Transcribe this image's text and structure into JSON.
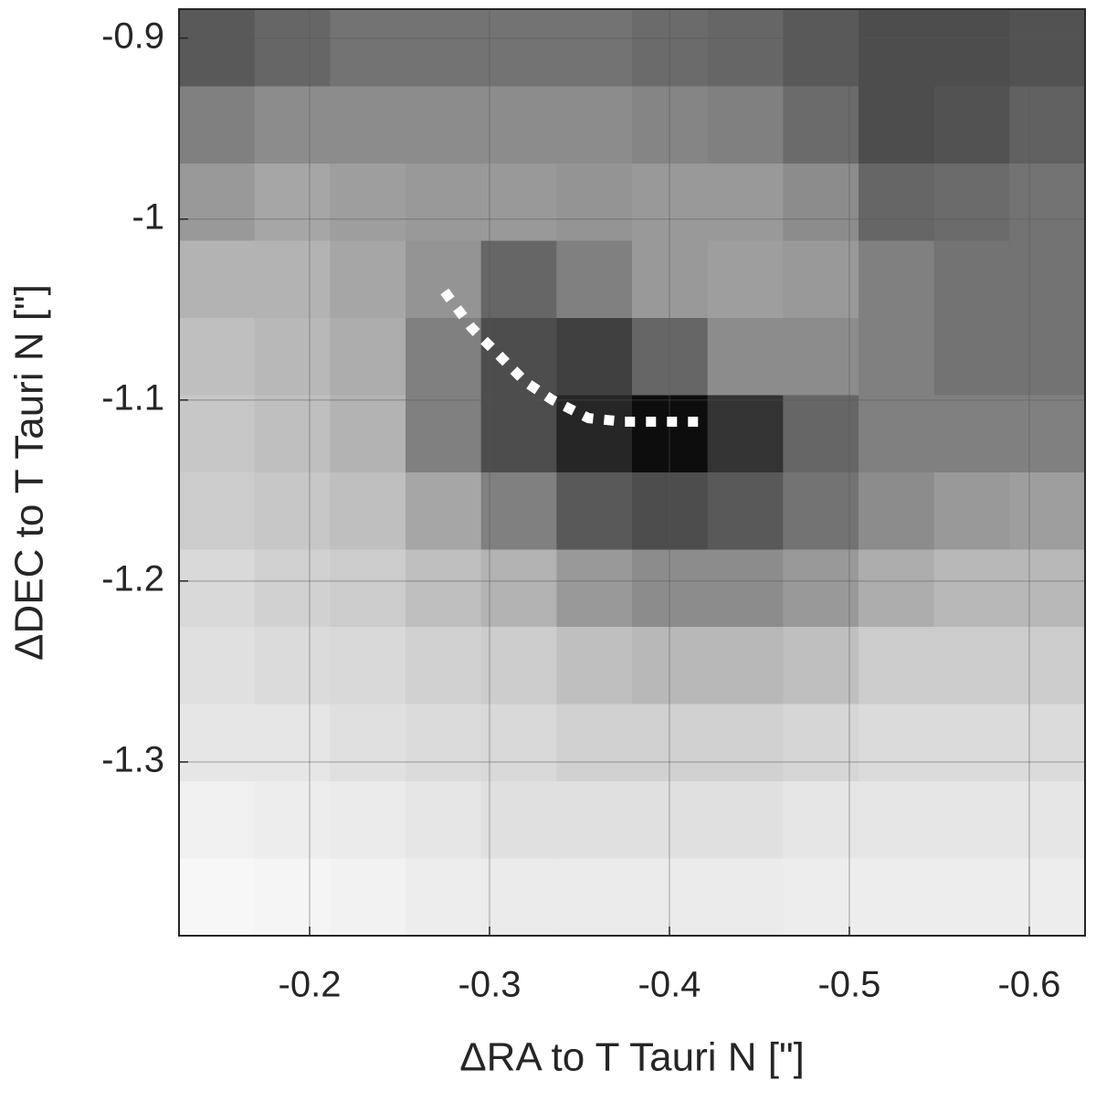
{
  "chart_data": {
    "type": "heatmap",
    "x_label": "ΔRA to T Tauri N [\"]",
    "y_label": "ΔDEC to T Tauri N [\"]",
    "xlim": [
      -0.1274,
      -0.631
    ],
    "ylim": [
      -1.396,
      -0.884
    ],
    "xticks": [
      -0.2,
      -0.3,
      -0.4,
      -0.5,
      -0.6
    ],
    "yticks": [
      -0.9,
      -1,
      -1.1,
      -1.2,
      -1.3
    ],
    "grid": true,
    "colormap": "gray",
    "z": [
      [
        0.35,
        0.4,
        0.45,
        0.45,
        0.45,
        0.45,
        0.42,
        0.4,
        0.35,
        0.3,
        0.3,
        0.32
      ],
      [
        0.5,
        0.55,
        0.55,
        0.55,
        0.55,
        0.55,
        0.52,
        0.5,
        0.42,
        0.3,
        0.32,
        0.38
      ],
      [
        0.6,
        0.65,
        0.62,
        0.6,
        0.6,
        0.58,
        0.6,
        0.6,
        0.55,
        0.4,
        0.42,
        0.45
      ],
      [
        0.7,
        0.7,
        0.65,
        0.58,
        0.4,
        0.5,
        0.6,
        0.62,
        0.6,
        0.5,
        0.45,
        0.45
      ],
      [
        0.75,
        0.72,
        0.68,
        0.5,
        0.3,
        0.25,
        0.4,
        0.55,
        0.55,
        0.5,
        0.45,
        0.45
      ],
      [
        0.78,
        0.75,
        0.7,
        0.5,
        0.3,
        0.15,
        0.05,
        0.2,
        0.4,
        0.5,
        0.5,
        0.5
      ],
      [
        0.8,
        0.78,
        0.75,
        0.65,
        0.5,
        0.35,
        0.3,
        0.35,
        0.45,
        0.55,
        0.6,
        0.62
      ],
      [
        0.85,
        0.82,
        0.8,
        0.75,
        0.7,
        0.6,
        0.55,
        0.55,
        0.6,
        0.68,
        0.72,
        0.72
      ],
      [
        0.88,
        0.86,
        0.85,
        0.82,
        0.8,
        0.75,
        0.72,
        0.72,
        0.75,
        0.8,
        0.8,
        0.8
      ],
      [
        0.9,
        0.9,
        0.88,
        0.86,
        0.85,
        0.82,
        0.82,
        0.82,
        0.84,
        0.86,
        0.86,
        0.86
      ],
      [
        0.94,
        0.93,
        0.92,
        0.9,
        0.88,
        0.88,
        0.88,
        0.88,
        0.9,
        0.9,
        0.9,
        0.9
      ],
      [
        0.97,
        0.96,
        0.95,
        0.93,
        0.92,
        0.92,
        0.92,
        0.92,
        0.93,
        0.93,
        0.93,
        0.93
      ]
    ],
    "line": {
      "color": "#ffffff",
      "x": [
        -0.275,
        -0.29,
        -0.305,
        -0.32,
        -0.335,
        -0.355,
        -0.375,
        -0.39,
        -0.405,
        -0.42
      ],
      "y": [
        -1.04,
        -1.06,
        -1.075,
        -1.09,
        -1.1,
        -1.11,
        -1.112,
        -1.112,
        -1.112,
        -1.112
      ]
    }
  }
}
